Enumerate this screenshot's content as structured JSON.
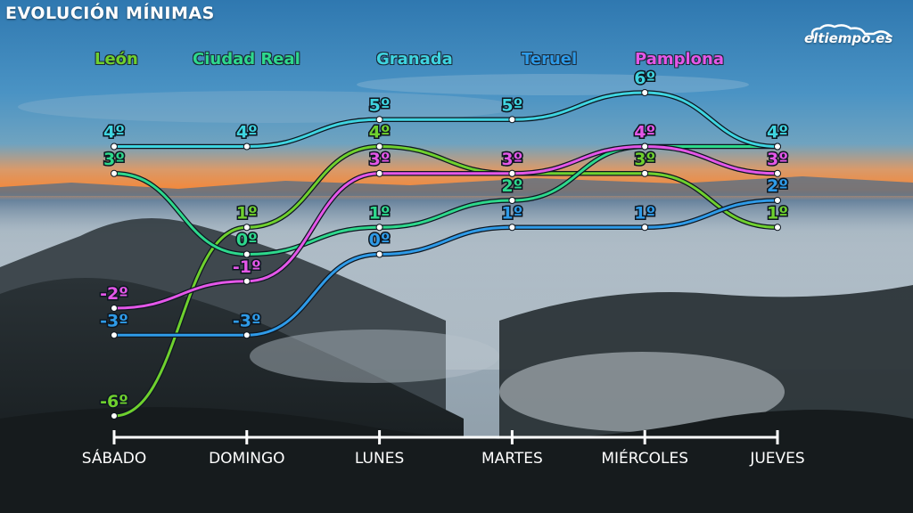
{
  "header": {
    "title": "EVOLUCIÓN MÍNIMAS"
  },
  "logo": {
    "text": "eltiempo.es"
  },
  "colors": {
    "sky_top": "#3d84b8",
    "sky_horizon": "#f08a3c",
    "fog": "#aab6bf",
    "mountains": "#1c2326"
  },
  "chart_data": {
    "type": "line",
    "categories": [
      "SÁBADO",
      "DOMINGO",
      "LUNES",
      "MARTES",
      "MIÉRCOLES",
      "JUEVES"
    ],
    "unit": "º",
    "series": [
      {
        "name": "León",
        "color": "#6fd02e",
        "values": [
          -6,
          1,
          4,
          3,
          3,
          1
        ]
      },
      {
        "name": "Ciudad Real",
        "color": "#2ed88c",
        "values": [
          3,
          0,
          1,
          2,
          4,
          4
        ]
      },
      {
        "name": "Granada",
        "color": "#3fd4e0",
        "values": [
          4,
          4,
          5,
          5,
          6,
          4
        ]
      },
      {
        "name": "Teruel",
        "color": "#2f9be8",
        "values": [
          -3,
          -3,
          0,
          1,
          1,
          2
        ]
      },
      {
        "name": "Pamplona",
        "color": "#e457e8",
        "values": [
          -2,
          -1,
          3,
          3,
          4,
          3
        ]
      }
    ],
    "ylim": [
      -6,
      6
    ],
    "legend": "top"
  }
}
